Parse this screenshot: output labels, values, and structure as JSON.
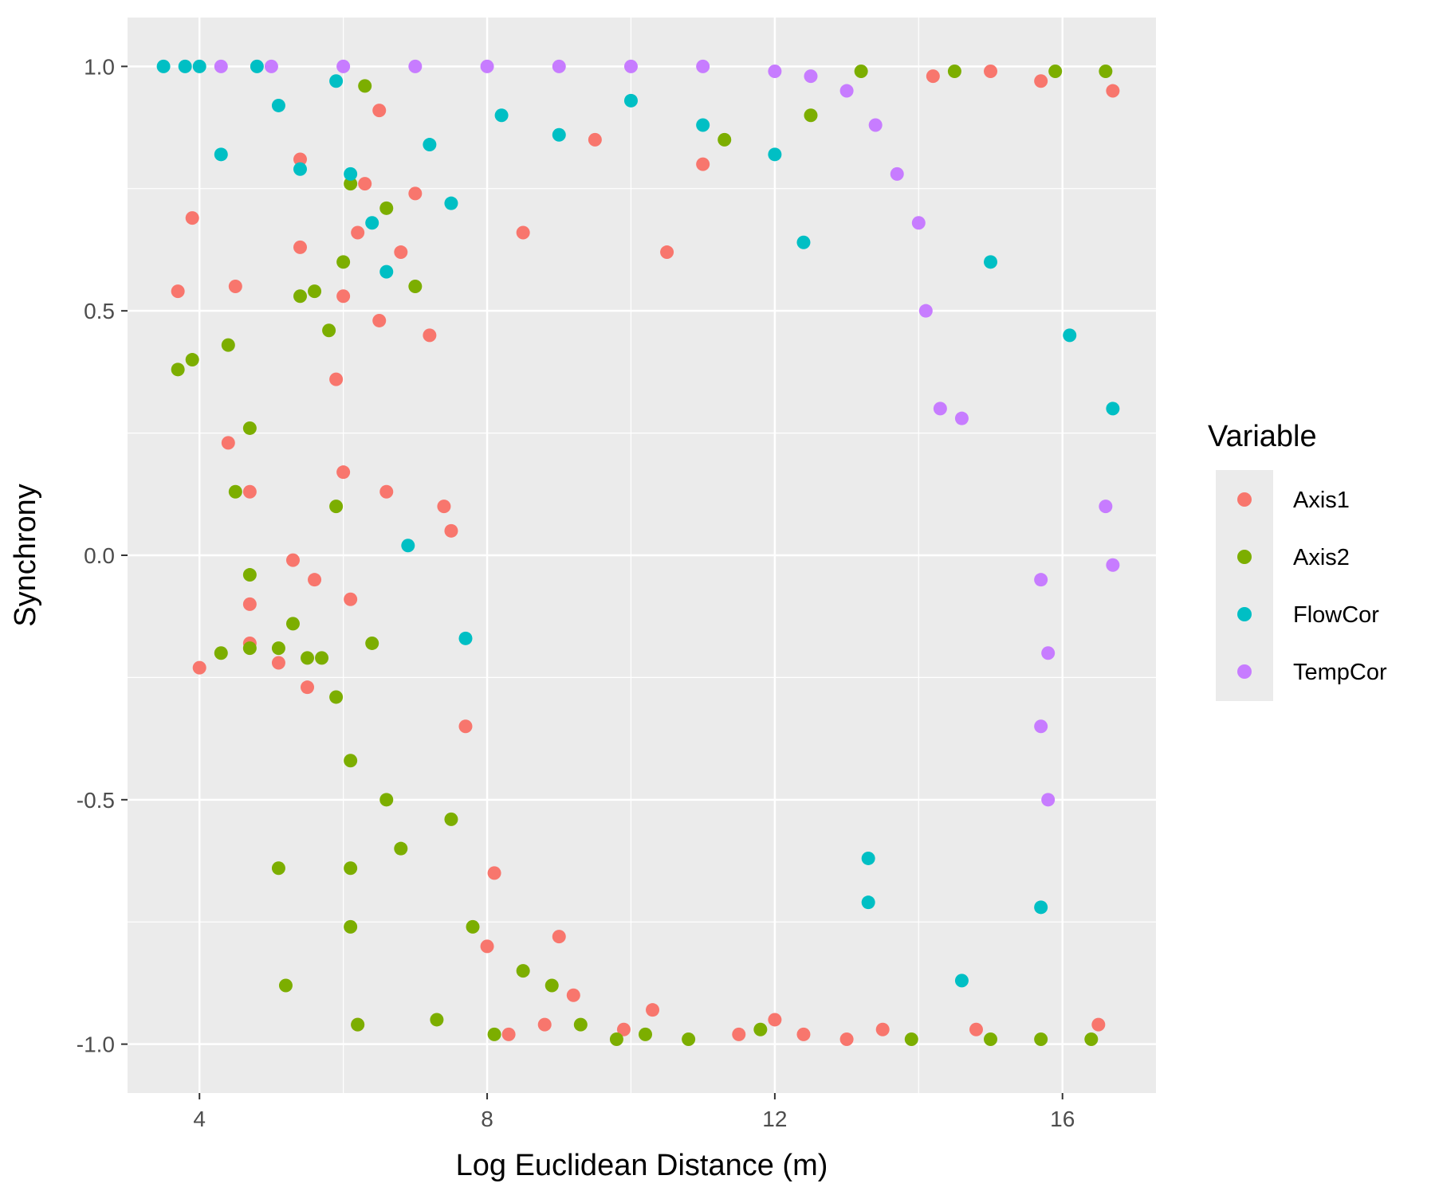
{
  "chart_data": {
    "type": "scatter",
    "xlabel": "Log Euclidean Distance (m)",
    "ylabel": "Synchrony",
    "xlim": [
      3.0,
      17.3
    ],
    "ylim": [
      -1.1,
      1.1
    ],
    "xticks": [
      4,
      8,
      12,
      16
    ],
    "xtick_labels": [
      "4",
      "8",
      "12",
      "16"
    ],
    "yticks": [
      -1.0,
      -0.5,
      0.0,
      0.5,
      1.0
    ],
    "ytick_labels": [
      "-1.0",
      "-0.5",
      "0.0",
      "0.5",
      "1.0"
    ],
    "grid": true,
    "legend": {
      "title": "Variable",
      "position": "right"
    },
    "colors": {
      "Axis1": "#F8766D",
      "Axis2": "#7CAE00",
      "FlowCor": "#00BFC4",
      "TempCor": "#C77CFF",
      "panel": "#EBEBEB",
      "grid": "#FFFFFF"
    },
    "series": [
      {
        "name": "Axis1",
        "color": "#F8766D",
        "points": [
          [
            3.7,
            0.54
          ],
          [
            3.9,
            0.69
          ],
          [
            4.0,
            -0.23
          ],
          [
            4.4,
            0.23
          ],
          [
            4.5,
            0.55
          ],
          [
            4.7,
            0.13
          ],
          [
            4.7,
            -0.1
          ],
          [
            4.7,
            -0.18
          ],
          [
            5.1,
            -0.22
          ],
          [
            5.3,
            -0.01
          ],
          [
            5.4,
            0.63
          ],
          [
            5.4,
            0.81
          ],
          [
            5.5,
            -0.27
          ],
          [
            5.6,
            -0.05
          ],
          [
            5.9,
            0.36
          ],
          [
            6.0,
            0.53
          ],
          [
            6.0,
            0.17
          ],
          [
            6.1,
            -0.09
          ],
          [
            6.2,
            0.66
          ],
          [
            6.2,
            -0.96
          ],
          [
            6.3,
            0.76
          ],
          [
            6.5,
            0.91
          ],
          [
            6.5,
            0.48
          ],
          [
            6.6,
            0.13
          ],
          [
            6.8,
            0.62
          ],
          [
            7.0,
            0.74
          ],
          [
            7.2,
            0.45
          ],
          [
            7.4,
            0.1
          ],
          [
            7.5,
            0.05
          ],
          [
            7.7,
            -0.35
          ],
          [
            8.0,
            -0.8
          ],
          [
            8.1,
            -0.65
          ],
          [
            8.3,
            -0.98
          ],
          [
            8.5,
            0.66
          ],
          [
            8.8,
            -0.96
          ],
          [
            9.0,
            -0.78
          ],
          [
            9.2,
            -0.9
          ],
          [
            9.5,
            0.85
          ],
          [
            9.9,
            -0.97
          ],
          [
            10.3,
            -0.93
          ],
          [
            10.5,
            0.62
          ],
          [
            11.0,
            0.8
          ],
          [
            11.5,
            -0.98
          ],
          [
            12.0,
            -0.95
          ],
          [
            12.4,
            -0.98
          ],
          [
            13.0,
            -0.99
          ],
          [
            13.5,
            -0.97
          ],
          [
            14.2,
            0.98
          ],
          [
            14.8,
            -0.97
          ],
          [
            15.0,
            0.99
          ],
          [
            15.7,
            0.97
          ],
          [
            16.5,
            -0.96
          ],
          [
            16.7,
            0.95
          ]
        ]
      },
      {
        "name": "Axis2",
        "color": "#7CAE00",
        "points": [
          [
            3.7,
            0.38
          ],
          [
            3.9,
            0.4
          ],
          [
            4.3,
            -0.2
          ],
          [
            4.4,
            0.43
          ],
          [
            4.5,
            0.13
          ],
          [
            4.7,
            0.26
          ],
          [
            4.7,
            -0.04
          ],
          [
            4.7,
            -0.19
          ],
          [
            5.1,
            -0.19
          ],
          [
            5.1,
            -0.64
          ],
          [
            5.2,
            -0.88
          ],
          [
            5.3,
            -0.14
          ],
          [
            5.4,
            0.53
          ],
          [
            5.5,
            -0.21
          ],
          [
            5.6,
            0.54
          ],
          [
            5.7,
            -0.21
          ],
          [
            5.8,
            0.46
          ],
          [
            5.9,
            0.1
          ],
          [
            5.9,
            -0.29
          ],
          [
            6.0,
            0.6
          ],
          [
            6.1,
            0.76
          ],
          [
            6.1,
            -0.42
          ],
          [
            6.1,
            -0.64
          ],
          [
            6.1,
            -0.76
          ],
          [
            6.2,
            -0.96
          ],
          [
            6.3,
            0.96
          ],
          [
            6.4,
            -0.18
          ],
          [
            6.6,
            0.71
          ],
          [
            6.6,
            -0.5
          ],
          [
            6.8,
            -0.6
          ],
          [
            7.0,
            0.55
          ],
          [
            7.3,
            -0.95
          ],
          [
            7.5,
            -0.54
          ],
          [
            7.8,
            -0.76
          ],
          [
            8.1,
            -0.98
          ],
          [
            8.5,
            -0.85
          ],
          [
            8.9,
            -0.88
          ],
          [
            9.3,
            -0.96
          ],
          [
            9.8,
            -0.99
          ],
          [
            10.2,
            -0.98
          ],
          [
            10.8,
            -0.99
          ],
          [
            11.3,
            0.85
          ],
          [
            11.8,
            -0.97
          ],
          [
            12.5,
            0.9
          ],
          [
            13.2,
            0.99
          ],
          [
            13.9,
            -0.99
          ],
          [
            14.5,
            0.99
          ],
          [
            15.0,
            -0.99
          ],
          [
            15.7,
            -0.99
          ],
          [
            15.9,
            0.99
          ],
          [
            16.4,
            -0.99
          ],
          [
            16.6,
            0.99
          ]
        ]
      },
      {
        "name": "FlowCor",
        "color": "#00BFC4",
        "points": [
          [
            3.5,
            1.0
          ],
          [
            3.8,
            1.0
          ],
          [
            4.0,
            1.0
          ],
          [
            4.3,
            0.82
          ],
          [
            4.8,
            1.0
          ],
          [
            5.1,
            0.92
          ],
          [
            5.4,
            0.79
          ],
          [
            5.9,
            0.97
          ],
          [
            6.1,
            0.78
          ],
          [
            6.4,
            0.68
          ],
          [
            6.6,
            0.58
          ],
          [
            6.9,
            0.02
          ],
          [
            7.2,
            0.84
          ],
          [
            7.5,
            0.72
          ],
          [
            7.7,
            -0.17
          ],
          [
            8.2,
            0.9
          ],
          [
            9.0,
            0.86
          ],
          [
            10.0,
            0.93
          ],
          [
            11.0,
            0.88
          ],
          [
            12.0,
            0.82
          ],
          [
            12.4,
            0.64
          ],
          [
            13.3,
            -0.62
          ],
          [
            13.3,
            -0.71
          ],
          [
            14.6,
            -0.87
          ],
          [
            15.0,
            0.6
          ],
          [
            15.7,
            -0.72
          ],
          [
            16.1,
            0.45
          ],
          [
            16.7,
            0.3
          ]
        ]
      },
      {
        "name": "TempCor",
        "color": "#C77CFF",
        "points": [
          [
            4.3,
            1.0
          ],
          [
            5.0,
            1.0
          ],
          [
            6.0,
            1.0
          ],
          [
            7.0,
            1.0
          ],
          [
            8.0,
            1.0
          ],
          [
            9.0,
            1.0
          ],
          [
            10.0,
            1.0
          ],
          [
            11.0,
            1.0
          ],
          [
            12.0,
            0.99
          ],
          [
            12.5,
            0.98
          ],
          [
            13.0,
            0.95
          ],
          [
            13.4,
            0.88
          ],
          [
            13.7,
            0.78
          ],
          [
            14.0,
            0.68
          ],
          [
            14.1,
            0.5
          ],
          [
            14.3,
            0.3
          ],
          [
            14.6,
            0.28
          ],
          [
            15.7,
            -0.05
          ],
          [
            15.8,
            -0.2
          ],
          [
            15.7,
            -0.35
          ],
          [
            15.8,
            -0.5
          ],
          [
            16.6,
            0.1
          ],
          [
            16.7,
            -0.02
          ]
        ]
      }
    ]
  }
}
